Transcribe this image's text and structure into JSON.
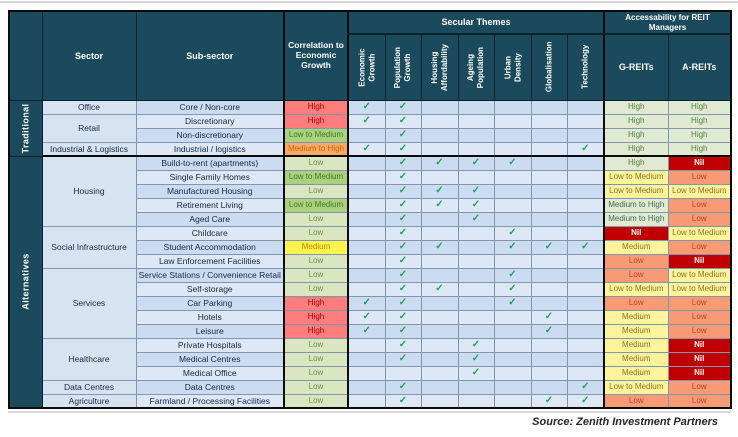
{
  "page": {
    "source": "Source: Zenith Investment Partners"
  },
  "colors": {
    "header_navy": "#1b4a5c",
    "check_green": "#21a05c",
    "row_stripe_dark": "#cbdcf2",
    "row_stripe_light": "#dde7f6",
    "sector_cell_blue": "#d8e3f2",
    "nil_red": "#c00000"
  },
  "palette": {
    "correlation": {
      "high": {
        "bg": "#ff7d7d",
        "fg": "#b00000"
      },
      "medium_to_high": {
        "bg": "#f6aa63",
        "fg": "#d2600a"
      },
      "medium": {
        "bg": "#fff34d",
        "fg": "#bc8a00"
      },
      "low_to_medium": {
        "bg": "#abd17f",
        "fg": "#3e7a1e"
      },
      "low": {
        "bg": "#dae6c2",
        "fg": "#6e9440"
      }
    },
    "reit": {
      "high": {
        "bg": "#e0ead3",
        "fg": "#55803d"
      },
      "medium_to_high": {
        "bg": "#e0ead3",
        "fg": "#3f6a52"
      },
      "medium": {
        "bg": "#fff49c",
        "fg": "#8e7520"
      },
      "low_to_medium": {
        "bg": "#fff49c",
        "fg": "#8e7520"
      },
      "low": {
        "bg": "#f79b76",
        "fg": "#c13d2e"
      },
      "nil": {
        "bg": "#c00000",
        "fg": "#ffffff",
        "bold": true
      }
    }
  },
  "table": {
    "header": {
      "sector": "Sector",
      "sub_sector": "Sub-sector",
      "correlation": "Correlation to Economic Growth",
      "secular_themes": "Secular Themes",
      "accessibility": "Accessability for REIT Managers",
      "g_reits": "G-REITs",
      "a_reits": "A-REITs"
    },
    "themes": [
      "Economic\nGrowth",
      "Population\nGrowth",
      "Housing\nAffordability",
      "Ageing\nPopulation",
      "Urban Density",
      "Globalisation",
      "Technology"
    ],
    "check_glyph": "✓",
    "rows": [
      {
        "group": "Traditional",
        "group_span": 4,
        "sector": "Office",
        "sector_span": 1,
        "sub": "Core / Non-core",
        "correlation": {
          "label": "High",
          "key": "high"
        },
        "themes": [
          1,
          1,
          0,
          0,
          0,
          0,
          0
        ],
        "g_reits": {
          "label": "High",
          "key": "high"
        },
        "a_reits": {
          "label": "High",
          "key": "high"
        }
      },
      {
        "sector": "Retail",
        "sector_span": 2,
        "sub": "Discretionary",
        "correlation": {
          "label": "High",
          "key": "high"
        },
        "themes": [
          1,
          1,
          0,
          0,
          0,
          0,
          0
        ],
        "g_reits": {
          "label": "High",
          "key": "high"
        },
        "a_reits": {
          "label": "High",
          "key": "high"
        }
      },
      {
        "sub": "Non-discretionary",
        "correlation": {
          "label": "Low to Medium",
          "key": "low_to_medium"
        },
        "themes": [
          0,
          1,
          0,
          0,
          0,
          0,
          0
        ],
        "g_reits": {
          "label": "High",
          "key": "high"
        },
        "a_reits": {
          "label": "High",
          "key": "high"
        }
      },
      {
        "sector": "Industrial & Logistics",
        "sector_span": 1,
        "sub": "Industrial / logistics",
        "correlation": {
          "label": "Medium to High",
          "key": "medium_to_high"
        },
        "themes": [
          1,
          1,
          0,
          0,
          0,
          0,
          1
        ],
        "g_reits": {
          "label": "High",
          "key": "high"
        },
        "a_reits": {
          "label": "High",
          "key": "high"
        },
        "section_end": true
      },
      {
        "group": "Alternatives",
        "group_span": 18,
        "sector": "Housing",
        "sector_span": 5,
        "sub": "Build-to-rent (apartments)",
        "correlation": {
          "label": "Low",
          "key": "low"
        },
        "themes": [
          0,
          1,
          1,
          1,
          1,
          0,
          0
        ],
        "g_reits": {
          "label": "High",
          "key": "high"
        },
        "a_reits": {
          "label": "Nil",
          "key": "nil"
        }
      },
      {
        "sub": "Single Family Homes",
        "correlation": {
          "label": "Low to Medium",
          "key": "low_to_medium"
        },
        "themes": [
          0,
          1,
          0,
          0,
          0,
          0,
          0
        ],
        "g_reits": {
          "label": "Low to Medium",
          "key": "low_to_medium"
        },
        "a_reits": {
          "label": "Low",
          "key": "low"
        }
      },
      {
        "sub": "Manufactured Housing",
        "correlation": {
          "label": "Low",
          "key": "low"
        },
        "themes": [
          0,
          1,
          1,
          1,
          0,
          0,
          0
        ],
        "g_reits": {
          "label": "Low to Medium",
          "key": "low_to_medium"
        },
        "a_reits": {
          "label": "Low to Medium",
          "key": "low_to_medium"
        }
      },
      {
        "sub": "Retirement Living",
        "correlation": {
          "label": "Low to Medium",
          "key": "low_to_medium"
        },
        "themes": [
          0,
          1,
          1,
          1,
          0,
          0,
          0
        ],
        "g_reits": {
          "label": "Medium to High",
          "key": "medium_to_high"
        },
        "a_reits": {
          "label": "Low",
          "key": "low"
        }
      },
      {
        "sub": "Aged Care",
        "correlation": {
          "label": "Low",
          "key": "low"
        },
        "themes": [
          0,
          1,
          0,
          1,
          0,
          0,
          0
        ],
        "g_reits": {
          "label": "Medium to High",
          "key": "medium_to_high"
        },
        "a_reits": {
          "label": "Low",
          "key": "low"
        }
      },
      {
        "sector": "Social Infrastructure",
        "sector_span": 3,
        "sub": "Childcare",
        "correlation": {
          "label": "Low",
          "key": "low"
        },
        "themes": [
          0,
          1,
          0,
          0,
          1,
          0,
          0
        ],
        "g_reits": {
          "label": "Nil",
          "key": "nil"
        },
        "a_reits": {
          "label": "Low to Medium",
          "key": "low_to_medium"
        }
      },
      {
        "sub": "Student Accommodation",
        "correlation": {
          "label": "Medium",
          "key": "medium"
        },
        "themes": [
          0,
          1,
          1,
          0,
          1,
          1,
          1
        ],
        "g_reits": {
          "label": "Medium",
          "key": "medium"
        },
        "a_reits": {
          "label": "Low",
          "key": "low"
        }
      },
      {
        "sub": "Law Enforcement Facilities",
        "correlation": {
          "label": "Low",
          "key": "low"
        },
        "themes": [
          0,
          1,
          0,
          0,
          0,
          0,
          0
        ],
        "g_reits": {
          "label": "Low",
          "key": "low"
        },
        "a_reits": {
          "label": "Nil",
          "key": "nil"
        }
      },
      {
        "sector": "Services",
        "sector_span": 5,
        "sub": "Service Stations / Convenience Retail",
        "correlation": {
          "label": "Low",
          "key": "low"
        },
        "themes": [
          0,
          1,
          0,
          0,
          1,
          0,
          0
        ],
        "g_reits": {
          "label": "Low",
          "key": "low"
        },
        "a_reits": {
          "label": "Low to Medium",
          "key": "low_to_medium"
        }
      },
      {
        "sub": "Self-storage",
        "correlation": {
          "label": "Low",
          "key": "low"
        },
        "themes": [
          0,
          1,
          1,
          0,
          1,
          0,
          0
        ],
        "g_reits": {
          "label": "Low to Medium",
          "key": "low_to_medium"
        },
        "a_reits": {
          "label": "Low to Medium",
          "key": "low_to_medium"
        }
      },
      {
        "sub": "Car Parking",
        "correlation": {
          "label": "High",
          "key": "high"
        },
        "themes": [
          1,
          1,
          0,
          0,
          1,
          0,
          0
        ],
        "g_reits": {
          "label": "Low",
          "key": "low"
        },
        "a_reits": {
          "label": "Low",
          "key": "low"
        }
      },
      {
        "sub": "Hotels",
        "correlation": {
          "label": "High",
          "key": "high"
        },
        "themes": [
          1,
          1,
          0,
          0,
          0,
          1,
          0
        ],
        "g_reits": {
          "label": "Medium",
          "key": "medium"
        },
        "a_reits": {
          "label": "Low",
          "key": "low"
        }
      },
      {
        "sub": "Leisure",
        "correlation": {
          "label": "High",
          "key": "high"
        },
        "themes": [
          1,
          1,
          0,
          0,
          0,
          1,
          0
        ],
        "g_reits": {
          "label": "Medium",
          "key": "medium"
        },
        "a_reits": {
          "label": "Low",
          "key": "low"
        }
      },
      {
        "sector": "Healthcare",
        "sector_span": 3,
        "sub": "Private Hospitals",
        "correlation": {
          "label": "Low",
          "key": "low"
        },
        "themes": [
          0,
          1,
          0,
          1,
          0,
          0,
          0
        ],
        "g_reits": {
          "label": "Medium",
          "key": "medium"
        },
        "a_reits": {
          "label": "Nil",
          "key": "nil"
        }
      },
      {
        "sub": "Medical Centres",
        "correlation": {
          "label": "Low",
          "key": "low"
        },
        "themes": [
          0,
          1,
          0,
          1,
          0,
          0,
          0
        ],
        "g_reits": {
          "label": "Medium",
          "key": "medium"
        },
        "a_reits": {
          "label": "Nil",
          "key": "nil"
        }
      },
      {
        "sub": "Medical Office",
        "correlation": {
          "label": "Low",
          "key": "low"
        },
        "themes": [
          0,
          0,
          0,
          1,
          0,
          0,
          0
        ],
        "g_reits": {
          "label": "Medium",
          "key": "medium"
        },
        "a_reits": {
          "label": "Nil",
          "key": "nil"
        }
      },
      {
        "sector": "Data Centres",
        "sector_span": 1,
        "sub": "Data Centres",
        "correlation": {
          "label": "Low",
          "key": "low"
        },
        "themes": [
          0,
          1,
          0,
          0,
          0,
          0,
          1
        ],
        "g_reits": {
          "label": "Low to Medium",
          "key": "low_to_medium"
        },
        "a_reits": {
          "label": "Low",
          "key": "low"
        }
      },
      {
        "sector": "Agriculture",
        "sector_span": 1,
        "sub": "Farmland / Processing Facilities",
        "correlation": {
          "label": "Low",
          "key": "low"
        },
        "themes": [
          0,
          1,
          0,
          0,
          0,
          1,
          1
        ],
        "g_reits": {
          "label": "Low",
          "key": "low"
        },
        "a_reits": {
          "label": "Low",
          "key": "low"
        }
      }
    ]
  }
}
